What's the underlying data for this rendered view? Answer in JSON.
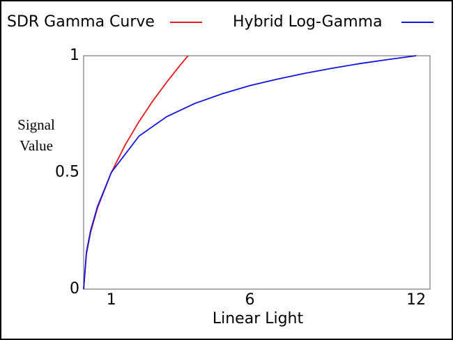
{
  "chart_data": {
    "type": "line",
    "x_label": "Linear Light",
    "y_label": "Signal Value",
    "xlim": [
      0,
      12.5
    ],
    "xticks": [
      1,
      6,
      12
    ],
    "ylim": [
      0,
      1
    ],
    "yticks": [
      0,
      0.5,
      1
    ],
    "grid": false,
    "legend": "top",
    "series": [
      {
        "name": "SDR Gamma Curve",
        "color": "#e8191c",
        "x": [
          0,
          0.1,
          0.25,
          0.5,
          1,
          1.5,
          2,
          2.5,
          3,
          3.5,
          3.77
        ],
        "values": [
          0,
          0.15,
          0.243,
          0.348,
          0.5,
          0.618,
          0.718,
          0.807,
          0.887,
          0.962,
          1
        ]
      },
      {
        "name": "Hybrid Log-Gamma",
        "color": "#1414e0",
        "x": [
          0,
          0.1,
          0.25,
          0.5,
          1,
          2,
          3,
          4,
          5,
          6,
          7,
          8,
          9,
          10,
          11,
          12
        ],
        "values": [
          0,
          0.158,
          0.25,
          0.354,
          0.5,
          0.656,
          0.739,
          0.795,
          0.837,
          0.872,
          0.9,
          0.925,
          0.947,
          0.967,
          0.984,
          1
        ]
      }
    ]
  }
}
